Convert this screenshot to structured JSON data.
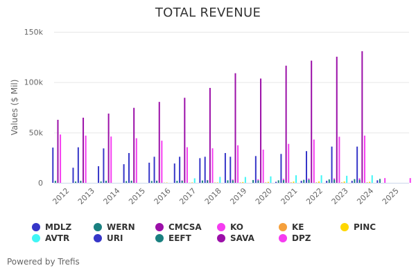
{
  "chart_data": {
    "type": "bar",
    "title": "TOTAL REVENUE",
    "xlabel": "",
    "ylabel": "Values ($ Mil)",
    "ylim": [
      0,
      150000
    ],
    "yticks": [
      0,
      50000,
      100000,
      150000
    ],
    "ytick_labels": [
      "0",
      "50k",
      "100k",
      "150k"
    ],
    "grid": true,
    "legend_position": "bottom",
    "categories": [
      "2012",
      "2013",
      "2014",
      "2015",
      "2016",
      "2017",
      "2018",
      "2019",
      "2020",
      "2021",
      "2022",
      "2023",
      "2024",
      "2025"
    ],
    "series": [
      {
        "name": "MDLZ",
        "color": "#3636c8",
        "values": [
          35000,
          35300,
          34200,
          29600,
          25900,
          25900,
          25900,
          25900,
          26600,
          28700,
          31500,
          36000,
          36000,
          0
        ]
      },
      {
        "name": "WERN",
        "color": "#1a8080",
        "values": [
          2000,
          2000,
          2000,
          2100,
          2000,
          2100,
          2500,
          2500,
          2400,
          2700,
          3300,
          3300,
          3000,
          0
        ]
      },
      {
        "name": "CMCSA",
        "color": "#9b0fa8",
        "values": [
          62600,
          64700,
          68800,
          74500,
          80400,
          84500,
          94300,
          108900,
          103600,
          116400,
          121400,
          125300,
          130800,
          0
        ]
      },
      {
        "name": "KO",
        "color": "#f53cf0",
        "values": [
          48000,
          46900,
          46000,
          44300,
          41900,
          35400,
          34300,
          37300,
          33000,
          38700,
          43000,
          45800,
          46900,
          0
        ]
      },
      {
        "name": "KE",
        "color": "#f5a03c",
        "values": [
          0,
          0,
          0,
          0,
          200,
          200,
          300,
          400,
          400,
          500,
          500,
          500,
          500,
          0
        ]
      },
      {
        "name": "PINC",
        "color": "#ffd700",
        "values": [
          0,
          0,
          0,
          0,
          300,
          400,
          400,
          800,
          900,
          1200,
          1300,
          1300,
          1000,
          0
        ]
      },
      {
        "name": "AVTR",
        "color": "#40f5f5",
        "values": [
          0,
          0,
          0,
          0,
          0,
          4500,
          5900,
          5800,
          6400,
          7500,
          7500,
          7000,
          7500,
          0
        ]
      },
      {
        "name": "URI",
        "color": "#3636c8",
        "values": [
          15000,
          16500,
          18500,
          20000,
          19200,
          24500,
          29600,
          0,
          1000,
          2000,
          2000,
          2000,
          2500,
          0
        ]
      },
      {
        "name": "EEFT",
        "color": "#1a8080",
        "values": [
          1300,
          1400,
          1700,
          1800,
          2000,
          2300,
          2500,
          2800,
          2500,
          3000,
          3400,
          3700,
          3900,
          0
        ]
      },
      {
        "name": "SAVA",
        "color": "#9b0fa8",
        "values": [
          0,
          0,
          0,
          0,
          0,
          0,
          0,
          0,
          0,
          0,
          0,
          0,
          0,
          0
        ]
      },
      {
        "name": "DPZ",
        "color": "#f53cf0",
        "values": [
          1700,
          1800,
          2000,
          2200,
          2500,
          2800,
          3400,
          3600,
          4100,
          4400,
          4500,
          4500,
          4700,
          4700
        ]
      }
    ]
  },
  "legend": {
    "rows": [
      [
        {
          "label": "MDLZ",
          "color": "#3636c8"
        },
        {
          "label": "WERN",
          "color": "#1a8080"
        },
        {
          "label": "CMCSA",
          "color": "#9b0fa8"
        },
        {
          "label": "KO",
          "color": "#f53cf0"
        },
        {
          "label": "KE",
          "color": "#f5a03c"
        },
        {
          "label": "PINC",
          "color": "#ffd700"
        }
      ],
      [
        {
          "label": "AVTR",
          "color": "#40f5f5"
        },
        {
          "label": "URI",
          "color": "#3636c8"
        },
        {
          "label": "EEFT",
          "color": "#1a8080"
        },
        {
          "label": "SAVA",
          "color": "#9b0fa8"
        },
        {
          "label": "DPZ",
          "color": "#f53cf0"
        }
      ]
    ]
  },
  "footer": "Powered by Trefis"
}
